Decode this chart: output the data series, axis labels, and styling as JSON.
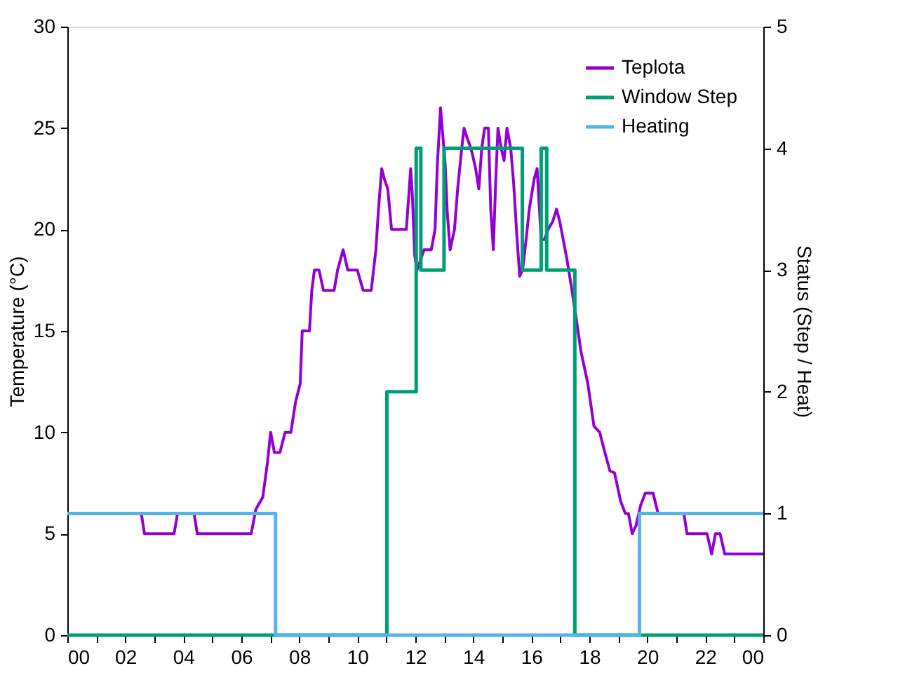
{
  "chart_data": {
    "type": "line",
    "ylabel": "Temperature (°C)",
    "y2label": "Status (Step / Heat)",
    "xlim": [
      0,
      24
    ],
    "ylim": [
      0,
      30
    ],
    "y2lim": [
      0,
      5
    ],
    "xticks": [
      {
        "value": 0,
        "label": "00"
      },
      {
        "value": 1,
        "label": null
      },
      {
        "value": 2,
        "label": "02"
      },
      {
        "value": 3,
        "label": null
      },
      {
        "value": 4,
        "label": "04"
      },
      {
        "value": 5,
        "label": null
      },
      {
        "value": 6,
        "label": "06"
      },
      {
        "value": 7,
        "label": null
      },
      {
        "value": 8,
        "label": "08"
      },
      {
        "value": 9,
        "label": null
      },
      {
        "value": 10,
        "label": "10"
      },
      {
        "value": 11,
        "label": null
      },
      {
        "value": 12,
        "label": "12"
      },
      {
        "value": 13,
        "label": null
      },
      {
        "value": 14,
        "label": "14"
      },
      {
        "value": 15,
        "label": null
      },
      {
        "value": 16,
        "label": "16"
      },
      {
        "value": 17,
        "label": null
      },
      {
        "value": 18,
        "label": "18"
      },
      {
        "value": 19,
        "label": null
      },
      {
        "value": 20,
        "label": "20"
      },
      {
        "value": 21,
        "label": null
      },
      {
        "value": 22,
        "label": "22"
      },
      {
        "value": 23,
        "label": null
      },
      {
        "value": 24,
        "label": "00"
      }
    ],
    "yticks": [
      0,
      5,
      10,
      15,
      20,
      25,
      30
    ],
    "y2ticks": [
      0,
      1,
      2,
      3,
      4,
      5
    ],
    "grid": false,
    "legend": "top right",
    "series": [
      {
        "name": "Teplota",
        "color": "#9400d3",
        "type": "line",
        "axis": "y",
        "x": [
          0,
          2.55,
          2.66,
          3.68,
          3.8,
          4.37,
          4.48,
          6.34,
          6.5,
          6.74,
          6.9,
          7.01,
          7.14,
          7.33,
          7.51,
          7.71,
          7.87,
          8.03,
          8.1,
          8.35,
          8.43,
          8.52,
          8.68,
          8.83,
          9.2,
          9.32,
          9.51,
          9.67,
          10.0,
          10.2,
          10.48,
          10.64,
          10.73,
          10.84,
          10.93,
          11.05,
          11.18,
          11.69,
          11.77,
          11.84,
          11.9,
          11.98,
          12.06,
          12.3,
          12.55,
          12.68,
          12.76,
          12.87,
          12.95,
          13.03,
          13.1,
          13.2,
          13.35,
          13.46,
          13.6,
          13.68,
          13.79,
          13.92,
          14.08,
          14.19,
          14.29,
          14.39,
          14.52,
          14.6,
          14.69,
          14.77,
          14.85,
          14.96,
          15.06,
          15.16,
          15.29,
          15.39,
          15.51,
          15.6,
          15.7,
          15.82,
          15.93,
          16.1,
          16.2,
          16.34,
          16.45,
          16.58,
          16.74,
          16.87,
          16.98,
          17.1,
          17.22,
          17.38,
          17.55,
          17.71,
          17.95,
          18.16,
          18.36,
          18.52,
          18.71,
          18.87,
          19.08,
          19.24,
          19.35,
          19.48,
          19.61,
          19.77,
          19.93,
          20.2,
          20.37,
          21.26,
          21.37,
          22.06,
          22.22,
          22.35,
          22.51,
          22.67,
          24
        ],
        "values": [
          6,
          6,
          5,
          5,
          6,
          6,
          5,
          5,
          6.2,
          6.8,
          8.5,
          10,
          9,
          9,
          10,
          10,
          11.5,
          12.4,
          15,
          15,
          17,
          18,
          18,
          17,
          17,
          18,
          19,
          18,
          18,
          17,
          17,
          19,
          21,
          23,
          22.5,
          22,
          20,
          20,
          21.6,
          23,
          21.6,
          18.7,
          18,
          19,
          19,
          20,
          23.2,
          26,
          24.6,
          23.2,
          20.9,
          19,
          20,
          22,
          24,
          25,
          24.5,
          24,
          23,
          22,
          24,
          25,
          25,
          21,
          19,
          22.3,
          25,
          24,
          23.4,
          25,
          24,
          22.3,
          19.5,
          17.7,
          18,
          19.5,
          21,
          22.5,
          23,
          19.5,
          19.5,
          20,
          20.4,
          21,
          20.4,
          19.5,
          18.6,
          17.2,
          15.6,
          14,
          12.4,
          10.3,
          10,
          9.1,
          8.1,
          8,
          6.6,
          6,
          6,
          5,
          5.4,
          6.4,
          7,
          7,
          6,
          6,
          5,
          5,
          4,
          5,
          5,
          4,
          4
        ]
      },
      {
        "name": "Window Step",
        "color": "#009e73",
        "type": "step",
        "axis": "y2",
        "x": [
          0,
          11.02,
          12.03,
          12.19,
          12.99,
          15.69,
          16.34,
          16.53,
          17.5,
          24
        ],
        "values": [
          0,
          2,
          4,
          3,
          4,
          3,
          4,
          3,
          0,
          0
        ]
      },
      {
        "name": "Heating",
        "color": "#56b4e9",
        "type": "step",
        "axis": "y2",
        "x": [
          0,
          7.18,
          19.73,
          24
        ],
        "values": [
          1,
          0,
          1,
          1
        ]
      }
    ]
  }
}
